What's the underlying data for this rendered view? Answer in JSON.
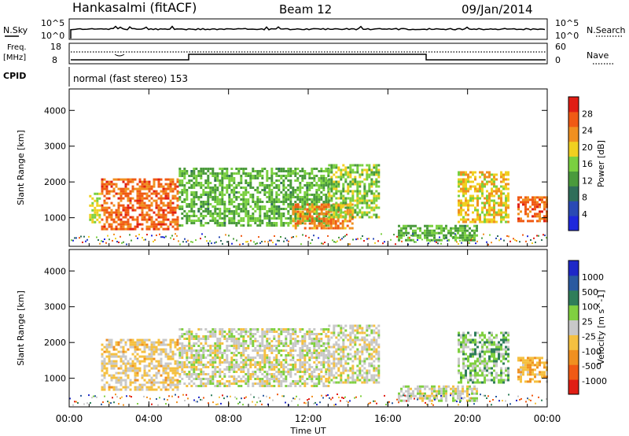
{
  "header": {
    "station": "Hankasalmi (fitACF)",
    "beam": "Beam 12",
    "date": "09/Jan/2014"
  },
  "status_panels": {
    "nsky": {
      "label": "N.Sky",
      "axis_top": "10^5",
      "axis_bottom": "10^0",
      "right_label": "N.Search",
      "right_top": "10^5",
      "right_bottom": "10^0"
    },
    "freq": {
      "label_line1": "Freq.",
      "label_line2": "[MHz]",
      "axis_top": "18",
      "axis_bottom": "8",
      "right_label": "Nave",
      "right_top": "60",
      "right_bottom": "0"
    },
    "cpid": {
      "label": "CPID",
      "value": "normal (fast stereo) 153"
    }
  },
  "x_axis": {
    "title": "Time UT",
    "ticks": [
      "00:00",
      "04:00",
      "08:00",
      "12:00",
      "16:00",
      "20:00",
      "00:00"
    ]
  },
  "y_axis": {
    "title": "Slant Range [km]",
    "ticks": [
      "1000",
      "2000",
      "3000",
      "4000"
    ]
  },
  "colors": {
    "power": [
      "#1e28dc",
      "#2a4ab4",
      "#2f6e5a",
      "#4a9a3c",
      "#7ad040",
      "#f0d020",
      "#f09020",
      "#f05a14",
      "#e01e14"
    ],
    "velocity": [
      "#e01e14",
      "#f05a14",
      "#f09020",
      "#f5c040",
      "#c8c8c8",
      "#80d040",
      "#2f7e5a",
      "#2a5aa0",
      "#1e28c8"
    ]
  },
  "chart_data": [
    {
      "type": "heatmap",
      "title": "Power",
      "xlabel": "Time UT",
      "ylabel": "Slant Range [km]",
      "x_range": [
        "00:00",
        "24:00"
      ],
      "ylim": [
        200,
        4600
      ],
      "colorbar": {
        "label": "Power [dB]",
        "ticks": [
          "4",
          "8",
          "12",
          "16",
          "20",
          "24",
          "28"
        ],
        "range": [
          0,
          32
        ]
      },
      "regions": [
        {
          "t_start": 1.0,
          "t_end": 1.5,
          "r_start": 900,
          "r_end": 1700,
          "value": 18
        },
        {
          "t_start": 1.6,
          "t_end": 5.5,
          "r_start": 700,
          "r_end": 2100,
          "value": 26
        },
        {
          "t_start": 5.5,
          "t_end": 13.0,
          "r_start": 800,
          "r_end": 2400,
          "value": 14
        },
        {
          "t_start": 11.2,
          "t_end": 14.2,
          "r_start": 700,
          "r_end": 1400,
          "value": 24
        },
        {
          "t_start": 13.0,
          "t_end": 15.5,
          "r_start": 1000,
          "r_end": 2500,
          "value": 16
        },
        {
          "t_start": 16.5,
          "t_end": 20.5,
          "r_start": 400,
          "r_end": 800,
          "value": 14
        },
        {
          "t_start": 19.5,
          "t_end": 22.0,
          "r_start": 900,
          "r_end": 2300,
          "value": 20
        },
        {
          "t_start": 22.5,
          "t_end": 24.0,
          "r_start": 900,
          "r_end": 1600,
          "value": 26
        }
      ]
    },
    {
      "type": "heatmap",
      "title": "Velocity",
      "xlabel": "Time UT",
      "ylabel": "Slant Range [km]",
      "x_range": [
        "00:00",
        "24:00"
      ],
      "ylim": [
        200,
        4600
      ],
      "colorbar": {
        "label": "Velocity [m s^-1]",
        "ticks": [
          "1000",
          "500",
          "100",
          "25",
          "-25",
          "-100",
          "-500",
          "-1000"
        ],
        "range": [
          -1000,
          1000
        ]
      },
      "regions": [
        {
          "t_start": 1.6,
          "t_end": 5.5,
          "r_start": 700,
          "r_end": 2100,
          "value": -150
        },
        {
          "t_start": 5.5,
          "t_end": 13.0,
          "r_start": 800,
          "r_end": 2400,
          "value": 0
        },
        {
          "t_start": 13.0,
          "t_end": 15.5,
          "r_start": 900,
          "r_end": 2500,
          "value": 0
        },
        {
          "t_start": 16.5,
          "t_end": 20.5,
          "r_start": 400,
          "r_end": 800,
          "value": 0
        },
        {
          "t_start": 19.5,
          "t_end": 22.0,
          "r_start": 900,
          "r_end": 2300,
          "value": 200
        },
        {
          "t_start": 22.5,
          "t_end": 24.0,
          "r_start": 900,
          "r_end": 1600,
          "value": -300
        }
      ]
    }
  ]
}
